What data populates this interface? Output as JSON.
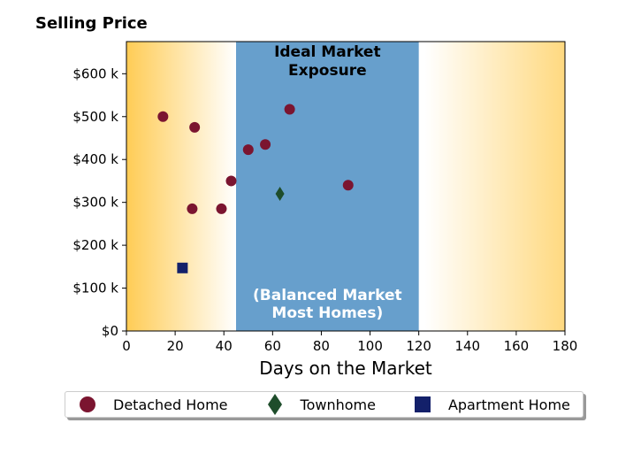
{
  "chart_data": {
    "type": "scatter",
    "title": "Selling Price",
    "xlabel": "Days on the Market",
    "ylabel": "",
    "xlim": [
      0,
      180
    ],
    "ylim": [
      0,
      675000
    ],
    "x_ticks": [
      0,
      20,
      40,
      60,
      80,
      100,
      120,
      140,
      160,
      180
    ],
    "y_ticks": [
      {
        "value": 0,
        "label": "$0"
      },
      {
        "value": 100000,
        "label": "$100 k"
      },
      {
        "value": 200000,
        "label": "$200 k"
      },
      {
        "value": 300000,
        "label": "$300 k"
      },
      {
        "value": 400000,
        "label": "$400 k"
      },
      {
        "value": 500000,
        "label": "$500 k"
      },
      {
        "value": 600000,
        "label": "$600 k"
      }
    ],
    "grid": false,
    "legend_position": "bottom",
    "regions": [
      {
        "x_range": [
          45,
          120
        ],
        "color": "#679fcc",
        "label_top": [
          "Ideal Market",
          "Exposure"
        ],
        "label_bottom": [
          "(Balanced Market",
          "Most Homes)"
        ]
      }
    ],
    "background_gradient": {
      "edge_color": "#ffcc55",
      "center_color": "#ffffff"
    },
    "series": [
      {
        "name": "Detached Home",
        "marker": "circle",
        "color": "#7b1530",
        "points": [
          {
            "x": 15,
            "y": 500000
          },
          {
            "x": 28,
            "y": 475000
          },
          {
            "x": 27,
            "y": 285000
          },
          {
            "x": 39,
            "y": 285000
          },
          {
            "x": 43,
            "y": 350000
          },
          {
            "x": 50,
            "y": 423000
          },
          {
            "x": 57,
            "y": 435000
          },
          {
            "x": 67,
            "y": 517000
          },
          {
            "x": 91,
            "y": 340000
          }
        ]
      },
      {
        "name": "Townhome",
        "marker": "diamond",
        "color": "#1e4d2b",
        "points": [
          {
            "x": 63,
            "y": 320000
          }
        ]
      },
      {
        "name": "Apartment Home",
        "marker": "square",
        "color": "#13206a",
        "points": [
          {
            "x": 23,
            "y": 147000
          }
        ]
      }
    ]
  }
}
